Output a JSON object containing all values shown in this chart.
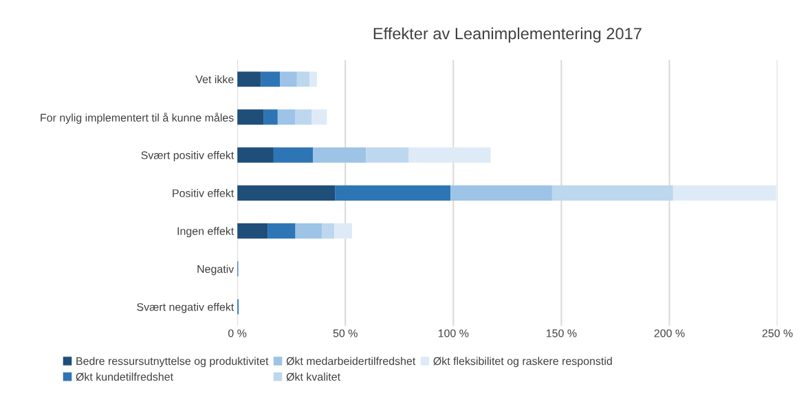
{
  "chart_data": {
    "type": "bar",
    "orientation": "horizontal",
    "stacked": true,
    "title": "Effekter av Leanimplementering 2017",
    "categories": [
      "Vet ikke",
      "For nylig implementert til å kunne måles",
      "Svært positiv effekt",
      "Positiv effekt",
      "Ingen effekt",
      "Negativ",
      "Svært negativ effekt"
    ],
    "series": [
      {
        "name": "Bedre ressursutnyttelse og produktivitet",
        "color": "#1f4e79",
        "values": [
          11.0,
          12.3,
          16.8,
          45.2,
          14.0,
          null,
          null
        ]
      },
      {
        "name": "Økt kundetilfredshet",
        "color": "#2e75b6",
        "values": [
          8.7,
          6.4,
          18.3,
          53.5,
          12.9,
          0.3,
          0.6
        ]
      },
      {
        "name": "Økt medarbeidertilfredshet",
        "color": "#9dc3e6",
        "values": [
          7.9,
          8.2,
          24.5,
          47.0,
          12.2,
          0.3,
          0
        ]
      },
      {
        "name": "Økt kvalitet",
        "color": "#bdd7ee",
        "values": [
          5.8,
          7.6,
          19.8,
          56.0,
          5.8,
          null,
          0
        ]
      },
      {
        "name": "Økt fleksibilitet og raskere responstid",
        "color": "#deebf7",
        "values": [
          3.5,
          7.0,
          37.9,
          47.7,
          8.2,
          null,
          0
        ]
      }
    ],
    "xlim": [
      0,
      250
    ],
    "xticks": [
      {
        "value": 0,
        "label": "0 %"
      },
      {
        "value": 50,
        "label": "50 %"
      },
      {
        "value": 100,
        "label": "100 %"
      },
      {
        "value": 150,
        "label": "150 %"
      },
      {
        "value": 200,
        "label": "200 %"
      },
      {
        "value": 250,
        "label": "250 %"
      }
    ],
    "grid": "x",
    "legend": "bottom"
  }
}
